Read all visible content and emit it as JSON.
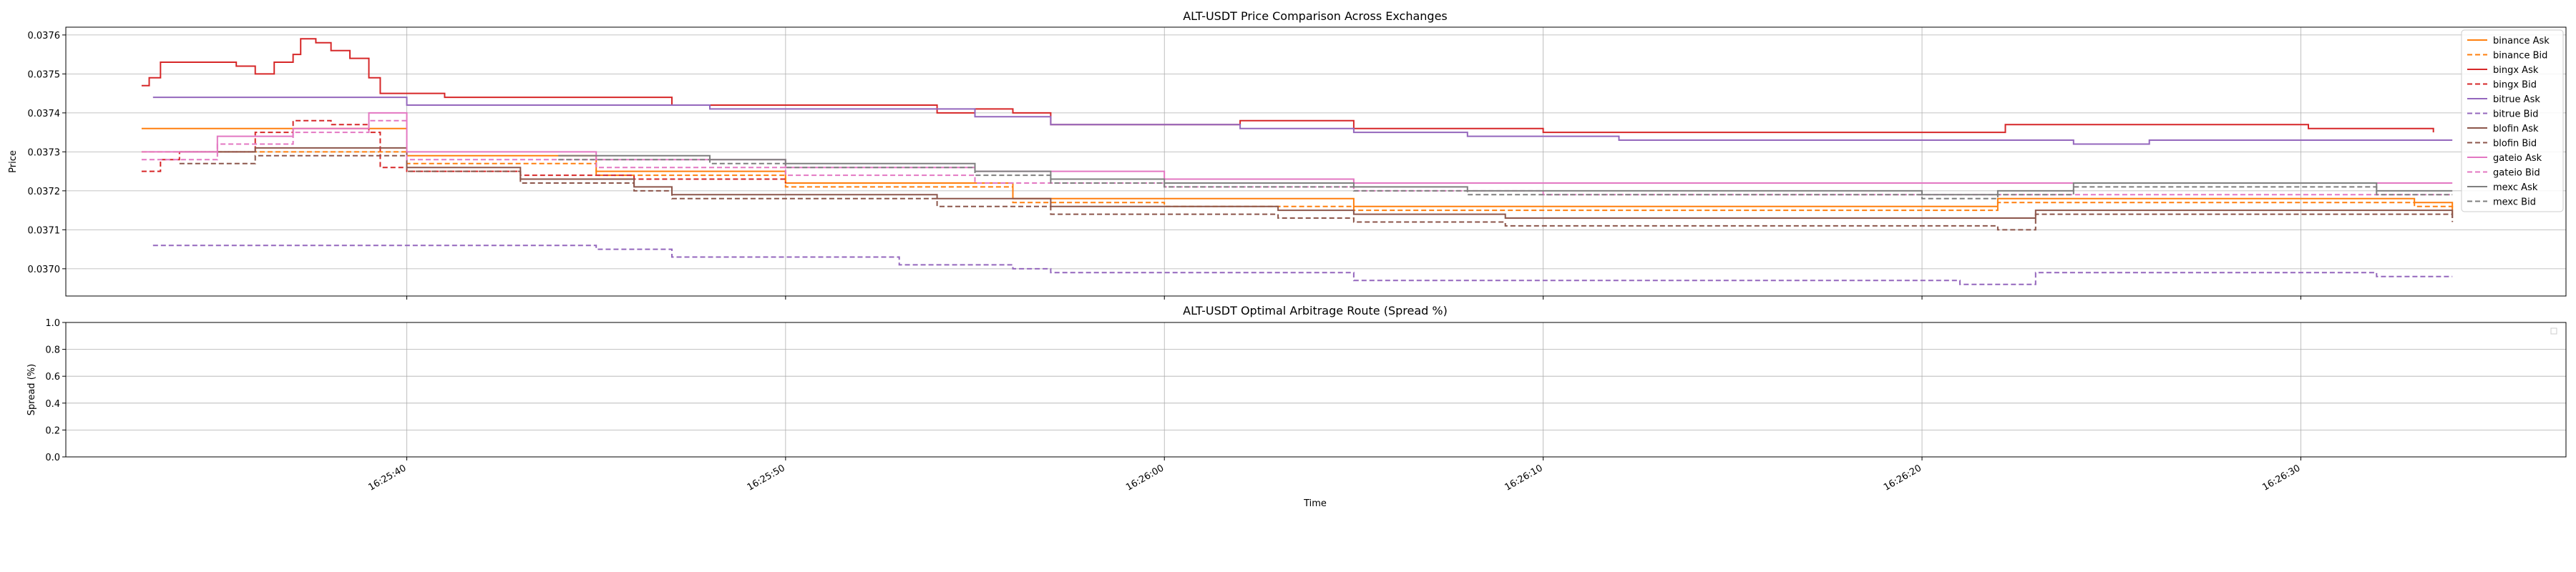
{
  "chart_data": [
    {
      "type": "line",
      "title": "ALT-USDT Price Comparison Across Exchanges",
      "xlabel": "",
      "ylabel": "Price",
      "xlim": [
        "16:25:31",
        "16:26:37"
      ],
      "ylim": [
        0.03693,
        0.03762
      ],
      "grid": true,
      "legend_position": "top-right",
      "yticks": [
        "0.0370",
        "0.0371",
        "0.0372",
        "0.0373",
        "0.0374",
        "0.0375",
        "0.0376"
      ],
      "series": [
        {
          "name": "binance Ask",
          "color": "#ff7f0e",
          "dash": false,
          "points": [
            [
              "16:25:33",
              0.03736
            ],
            [
              "16:25:40",
              0.03729
            ],
            [
              "16:25:45",
              0.03725
            ],
            [
              "16:25:50",
              0.03722
            ],
            [
              "16:25:56",
              0.03718
            ],
            [
              "16:26:00",
              0.03718
            ],
            [
              "16:26:05",
              0.03716
            ],
            [
              "16:26:10",
              0.03716
            ],
            [
              "16:26:20",
              0.03716
            ],
            [
              "16:26:22",
              0.03718
            ],
            [
              "16:26:33",
              0.03717
            ],
            [
              "16:26:34",
              0.03715
            ]
          ]
        },
        {
          "name": "binance Bid",
          "color": "#ff7f0e",
          "dash": true,
          "points": [
            [
              "16:25:33",
              0.0373
            ],
            [
              "16:25:40",
              0.03727
            ],
            [
              "16:25:45",
              0.03724
            ],
            [
              "16:25:50",
              0.03721
            ],
            [
              "16:25:56",
              0.03717
            ],
            [
              "16:26:00",
              0.03716
            ],
            [
              "16:26:05",
              0.03715
            ],
            [
              "16:26:10",
              0.03715
            ],
            [
              "16:26:20",
              0.03715
            ],
            [
              "16:26:22",
              0.03717
            ],
            [
              "16:26:33",
              0.03716
            ],
            [
              "16:26:34",
              0.03714
            ]
          ]
        },
        {
          "name": "bingx Ask",
          "color": "#d62728",
          "dash": false,
          "points": [
            [
              "16:25:33",
              0.03747
            ],
            [
              "16:25:33.2",
              0.03749
            ],
            [
              "16:25:33.5",
              0.03753
            ],
            [
              "16:25:35.5",
              0.03752
            ],
            [
              "16:25:36",
              0.0375
            ],
            [
              "16:25:36.5",
              0.03753
            ],
            [
              "16:25:37",
              0.03755
            ],
            [
              "16:25:37.2",
              0.03759
            ],
            [
              "16:25:37.6",
              0.03758
            ],
            [
              "16:25:38",
              0.03756
            ],
            [
              "16:25:38.5",
              0.03754
            ],
            [
              "16:25:39",
              0.03749
            ],
            [
              "16:25:39.3",
              0.03745
            ],
            [
              "16:25:40",
              0.03745
            ],
            [
              "16:25:41",
              0.03744
            ],
            [
              "16:25:45",
              0.03744
            ],
            [
              "16:25:47",
              0.03742
            ],
            [
              "16:25:52",
              0.03742
            ],
            [
              "16:25:54",
              0.0374
            ],
            [
              "16:25:55",
              0.03741
            ],
            [
              "16:25:56",
              0.0374
            ],
            [
              "16:25:57",
              0.03737
            ],
            [
              "16:26:00",
              0.03737
            ],
            [
              "16:26:02",
              0.03738
            ],
            [
              "16:26:05",
              0.03736
            ],
            [
              "16:26:10",
              0.03735
            ],
            [
              "16:26:22",
              0.03735
            ],
            [
              "16:26:22.2",
              0.03737
            ],
            [
              "16:26:30",
              0.03737
            ],
            [
              "16:26:30.2",
              0.03736
            ],
            [
              "16:26:33",
              0.03736
            ],
            [
              "16:26:33.5",
              0.03735
            ]
          ]
        },
        {
          "name": "bingx Bid",
          "color": "#d62728",
          "dash": true,
          "points": [
            [
              "16:25:33",
              0.03725
            ],
            [
              "16:25:33.5",
              0.03728
            ],
            [
              "16:25:34",
              0.0373
            ],
            [
              "16:25:36",
              0.03735
            ],
            [
              "16:25:37",
              0.03738
            ],
            [
              "16:25:38",
              0.03737
            ],
            [
              "16:25:39",
              0.03735
            ],
            [
              "16:25:39.3",
              0.03726
            ],
            [
              "16:25:40",
              0.03725
            ],
            [
              "16:25:43",
              0.03724
            ],
            [
              "16:25:46",
              0.03723
            ],
            [
              "16:25:50",
              0.03722
            ]
          ]
        },
        {
          "name": "bitrue Ask",
          "color": "#9467bd",
          "dash": false,
          "points": [
            [
              "16:25:33.3",
              0.03744
            ],
            [
              "16:25:40",
              0.03742
            ],
            [
              "16:25:48",
              0.03741
            ],
            [
              "16:25:52",
              0.03741
            ],
            [
              "16:25:55",
              0.03739
            ],
            [
              "16:25:57",
              0.03737
            ],
            [
              "16:26:00",
              0.03737
            ],
            [
              "16:26:02",
              0.03736
            ],
            [
              "16:26:05",
              0.03735
            ],
            [
              "16:26:08",
              0.03734
            ],
            [
              "16:26:12",
              0.03733
            ],
            [
              "16:26:20",
              0.03733
            ],
            [
              "16:26:24",
              0.03732
            ],
            [
              "16:26:26",
              0.03733
            ],
            [
              "16:26:30",
              0.03733
            ],
            [
              "16:26:34",
              0.03733
            ]
          ]
        },
        {
          "name": "bitrue Bid",
          "color": "#9467bd",
          "dash": true,
          "points": [
            [
              "16:25:33.3",
              0.03706
            ],
            [
              "16:25:40",
              0.03706
            ],
            [
              "16:25:45",
              0.03705
            ],
            [
              "16:25:47",
              0.03703
            ],
            [
              "16:25:51",
              0.03703
            ],
            [
              "16:25:53",
              0.03701
            ],
            [
              "16:25:56",
              0.037
            ],
            [
              "16:25:57",
              0.03699
            ],
            [
              "16:26:02",
              0.03699
            ],
            [
              "16:26:04",
              0.03699
            ],
            [
              "16:26:05",
              0.03697
            ],
            [
              "16:26:14",
              0.03697
            ],
            [
              "16:26:17",
              0.03697
            ],
            [
              "16:26:21",
              0.03696
            ],
            [
              "16:26:23",
              0.03699
            ],
            [
              "16:26:30",
              0.03699
            ],
            [
              "16:26:32",
              0.03698
            ],
            [
              "16:26:34",
              0.03698
            ]
          ]
        },
        {
          "name": "blofin Ask",
          "color": "#8c564b",
          "dash": false,
          "points": [
            [
              "16:25:34",
              0.0373
            ],
            [
              "16:25:36",
              0.03731
            ],
            [
              "16:25:40",
              0.03726
            ],
            [
              "16:25:43",
              0.03723
            ],
            [
              "16:25:46",
              0.03721
            ],
            [
              "16:25:47",
              0.03719
            ],
            [
              "16:25:50",
              0.03719
            ],
            [
              "16:25:54",
              0.03718
            ],
            [
              "16:25:57",
              0.03716
            ],
            [
              "16:26:00",
              0.03716
            ],
            [
              "16:26:03",
              0.03715
            ],
            [
              "16:26:05",
              0.03714
            ],
            [
              "16:26:09",
              0.03713
            ],
            [
              "16:26:20",
              0.03713
            ],
            [
              "16:26:22",
              0.03713
            ],
            [
              "16:26:23",
              0.03715
            ],
            [
              "16:26:32",
              0.03715
            ],
            [
              "16:26:34",
              0.03713
            ]
          ]
        },
        {
          "name": "blofin Bid",
          "color": "#8c564b",
          "dash": true,
          "points": [
            [
              "16:25:34",
              0.03727
            ],
            [
              "16:25:36",
              0.03729
            ],
            [
              "16:25:40",
              0.03725
            ],
            [
              "16:25:43",
              0.03722
            ],
            [
              "16:25:46",
              0.0372
            ],
            [
              "16:25:47",
              0.03718
            ],
            [
              "16:25:50",
              0.03718
            ],
            [
              "16:25:54",
              0.03716
            ],
            [
              "16:25:57",
              0.03714
            ],
            [
              "16:26:00",
              0.03714
            ],
            [
              "16:26:03",
              0.03713
            ],
            [
              "16:26:05",
              0.03712
            ],
            [
              "16:26:09",
              0.03711
            ],
            [
              "16:26:20",
              0.03711
            ],
            [
              "16:26:22",
              0.0371
            ],
            [
              "16:26:23",
              0.03714
            ],
            [
              "16:26:32",
              0.03714
            ],
            [
              "16:26:34",
              0.03712
            ]
          ]
        },
        {
          "name": "gateio Ask",
          "color": "#e377c2",
          "dash": false,
          "points": [
            [
              "16:25:33",
              0.0373
            ],
            [
              "16:25:35",
              0.03734
            ],
            [
              "16:25:37",
              0.03736
            ],
            [
              "16:25:39",
              0.0374
            ],
            [
              "16:25:40",
              0.0373
            ],
            [
              "16:25:45",
              0.03728
            ],
            [
              "16:25:50",
              0.03726
            ],
            [
              "16:25:55",
              0.03725
            ],
            [
              "16:26:00",
              0.03723
            ],
            [
              "16:26:05",
              0.03722
            ],
            [
              "16:26:10",
              0.03722
            ],
            [
              "16:26:20",
              0.03722
            ],
            [
              "16:26:34",
              0.03722
            ]
          ]
        },
        {
          "name": "gateio Bid",
          "color": "#e377c2",
          "dash": true,
          "points": [
            [
              "16:25:33",
              0.03728
            ],
            [
              "16:25:35",
              0.03732
            ],
            [
              "16:25:37",
              0.03735
            ],
            [
              "16:25:39",
              0.03738
            ],
            [
              "16:25:40",
              0.03728
            ],
            [
              "16:25:45",
              0.03726
            ],
            [
              "16:25:50",
              0.03724
            ],
            [
              "16:25:55",
              0.03722
            ],
            [
              "16:26:00",
              0.03721
            ],
            [
              "16:26:05",
              0.0372
            ],
            [
              "16:26:10",
              0.03719
            ],
            [
              "16:26:20",
              0.03719
            ],
            [
              "16:26:34",
              0.03719
            ]
          ]
        },
        {
          "name": "mexc Ask",
          "color": "#7f7f7f",
          "dash": false,
          "points": [
            [
              "16:25:44",
              0.03729
            ],
            [
              "16:25:48",
              0.03728
            ],
            [
              "16:25:50",
              0.03727
            ],
            [
              "16:25:55",
              0.03725
            ],
            [
              "16:25:57",
              0.03723
            ],
            [
              "16:26:00",
              0.03722
            ],
            [
              "16:26:05",
              0.03721
            ],
            [
              "16:26:08",
              0.0372
            ],
            [
              "16:26:10",
              0.0372
            ],
            [
              "16:26:20",
              0.03719
            ],
            [
              "16:26:22",
              0.0372
            ],
            [
              "16:26:24",
              0.03722
            ],
            [
              "16:26:30",
              0.03722
            ],
            [
              "16:26:32",
              0.0372
            ],
            [
              "16:26:34",
              0.0372
            ]
          ]
        },
        {
          "name": "mexc Bid",
          "color": "#7f7f7f",
          "dash": true,
          "points": [
            [
              "16:25:44",
              0.03728
            ],
            [
              "16:25:48",
              0.03727
            ],
            [
              "16:25:50",
              0.03726
            ],
            [
              "16:25:55",
              0.03724
            ],
            [
              "16:25:57",
              0.03722
            ],
            [
              "16:26:00",
              0.03721
            ],
            [
              "16:26:05",
              0.0372
            ],
            [
              "16:26:08",
              0.03719
            ],
            [
              "16:26:10",
              0.03719
            ],
            [
              "16:26:20",
              0.03718
            ],
            [
              "16:26:22",
              0.03719
            ],
            [
              "16:26:24",
              0.03721
            ],
            [
              "16:26:30",
              0.03721
            ],
            [
              "16:26:32",
              0.03719
            ],
            [
              "16:26:34",
              0.03719
            ]
          ]
        }
      ]
    },
    {
      "type": "line",
      "title": "ALT-USDT Optimal Arbitrage Route (Spread %)",
      "xlabel": "Time",
      "ylabel": "Spread (%)",
      "xlim": [
        "16:25:31",
        "16:26:37"
      ],
      "ylim": [
        0.0,
        1.0
      ],
      "grid": true,
      "yticks": [
        "0.0",
        "0.2",
        "0.4",
        "0.6",
        "0.8",
        "1.0"
      ],
      "xticks": [
        "16:25:40",
        "16:25:50",
        "16:26:00",
        "16:26:10",
        "16:26:20",
        "16:26:30"
      ],
      "series": []
    }
  ]
}
